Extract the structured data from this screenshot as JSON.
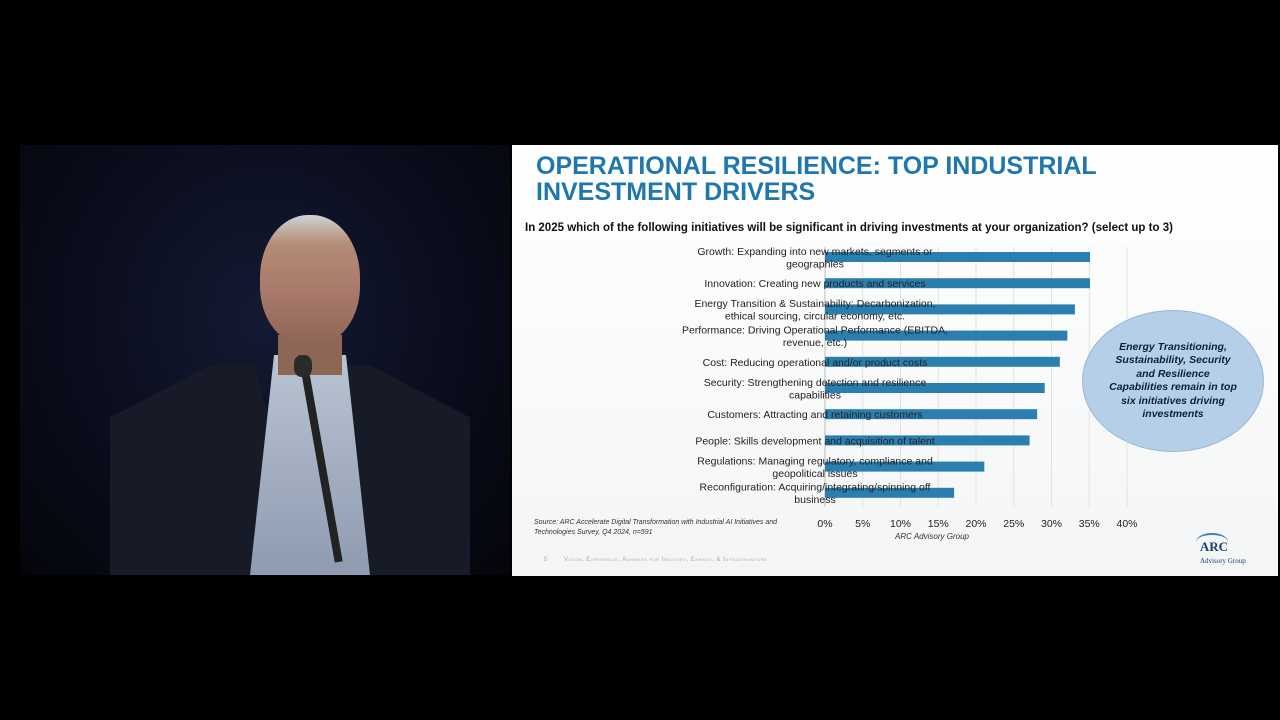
{
  "slide": {
    "title_line1": "OPERATIONAL RESILIENCE: TOP INDUSTRIAL",
    "title_line2": "INVESTMENT DRIVERS",
    "question": "In 2025 which of the following initiatives will be significant in driving investments at your organization? (select up to 3)",
    "callout": "Energy Transitioning, Sustainability, Security and Resilience Capabilities remain in top six initiatives driving investments",
    "source": "Source: ARC Accelerate Digital Transformation with Industrial AI Initiatives and Technologies Survey, Q4 2024, n=591",
    "footer_page": "5",
    "footer_text": "Vision, Experience, Answers for Industry, Energy, & Infrastructure",
    "logo_text": "ARC",
    "logo_sub": "Advisory Group"
  },
  "chart_data": {
    "type": "bar",
    "orientation": "horizontal",
    "categories": [
      [
        "Growth: Expanding into new markets, segments or",
        "geographies"
      ],
      [
        "Innovation: Creating new products and services"
      ],
      [
        "Energy Transition & Sustainability: Decarbonization,",
        "ethical sourcing, circular economy, etc."
      ],
      [
        "Performance: Driving Operational Performance (EBITDA,",
        "revenue, etc.)"
      ],
      [
        "Cost: Reducing operational and/or product costs"
      ],
      [
        "Security: Strengthening detection and resilience",
        "capabilities"
      ],
      [
        "Customers: Attracting and retaining customers"
      ],
      [
        "People: Skills development and acquisition of talent"
      ],
      [
        "Regulations: Managing regulatory, compliance and",
        "geopolitical issues"
      ],
      [
        "Reconfiguration: Acquiring/integrating/spinning off",
        "business"
      ]
    ],
    "values": [
      35.1,
      35.1,
      33.1,
      32.1,
      31.1,
      29.1,
      28.1,
      27.1,
      21.1,
      17.1
    ],
    "xticks": [
      "0%",
      "5%",
      "10%",
      "15%",
      "20%",
      "25%",
      "30%",
      "35%",
      "40%"
    ],
    "xlim": [
      0,
      40
    ],
    "xlabel": "ARC Advisory Group",
    "grid": true,
    "bar_color": "#2a7fb0"
  }
}
